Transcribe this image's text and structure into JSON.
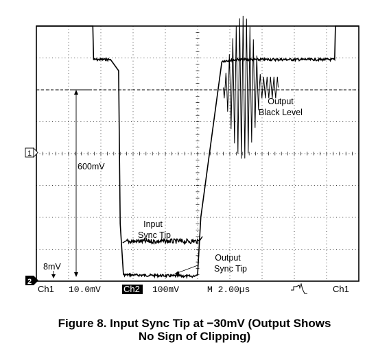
{
  "chart_data": {
    "type": "line",
    "title": "",
    "xlabel": "",
    "ylabel": "",
    "grid": true,
    "legend": "none",
    "x_div_us": 2.0,
    "y_div_mV_ch2": 100,
    "xlim_us": [
      0,
      20
    ],
    "ylim_divs": [
      0,
      8
    ],
    "series": [
      {
        "name": "",
        "unit_x": "µs",
        "unit_y": "divisions",
        "x": [
          0,
          3.5,
          3.55,
          4.6,
          5.1,
          5.2,
          5.4,
          9.8,
          10.0,
          10.2,
          11.5,
          12.5,
          15.7,
          18.5,
          18.55,
          20
        ],
        "y": [
          8,
          8,
          6.95,
          6.95,
          6.6,
          1.8,
          0.2,
          0.15,
          0.2,
          2.0,
          6.9,
          6.95,
          6.95,
          6.95,
          8,
          8
        ]
      },
      {
        "name": "",
        "unit_x": "µs",
        "unit_y": "divisions",
        "x": [
          5.35,
          5.6,
          10.1,
          10.3
        ],
        "y": [
          1.2,
          1.25,
          1.25,
          1.4
        ]
      }
    ],
    "burst": {
      "x_start_us": 11.6,
      "x_end_us": 15.0,
      "y_top_divs": 8,
      "y_bottom_divs": 3.5
    },
    "annotations": {
      "output_black_level": [
        "Output",
        "Black Level"
      ],
      "input_sync_tip": [
        "Input",
        "Sync Tip"
      ],
      "output_sync_tip": [
        "Output",
        "Sync Tip"
      ],
      "amplitude": "600mV",
      "offset": "8mV"
    },
    "markers": {
      "ch1": "1",
      "ch2": "2"
    },
    "readout": {
      "ch1": "Ch1",
      "ch1_scale": "10.0mV",
      "ch2": "Ch2",
      "ch2_scale": "100mV",
      "timebase": "M 2.00µs",
      "trigger_source": "Ch1"
    }
  },
  "caption": {
    "line1": "Figure 8. Input Sync Tip at −30mV (Output Shows",
    "line2": "No Sign of Clipping)"
  }
}
